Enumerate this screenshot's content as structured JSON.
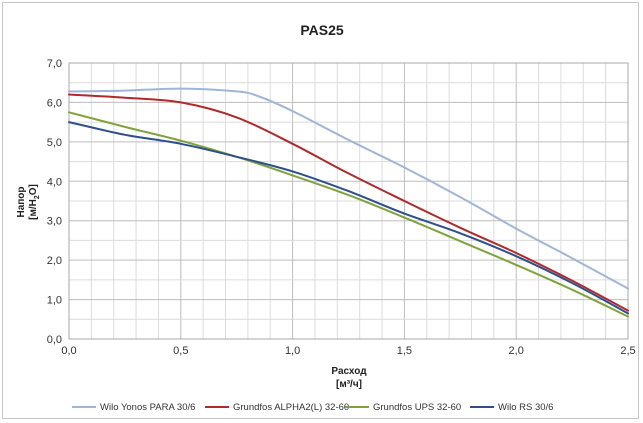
{
  "chart_data": {
    "type": "line",
    "title": "PAS25",
    "xlabel_line1": "Расход",
    "xlabel_line2": "[м³/ч]",
    "ylabel_line1": "Напор",
    "ylabel_line2_pre": "[м/H",
    "ylabel_line2_sub": "2",
    "ylabel_line2_post": "O]",
    "xlim": [
      0,
      2.5
    ],
    "ylim": [
      0,
      7
    ],
    "x_ticks": [
      "0,0",
      "0,5",
      "1,0",
      "1,5",
      "2,0",
      "2,5"
    ],
    "y_ticks": [
      "0,0",
      "1,0",
      "2,0",
      "3,0",
      "4,0",
      "5,0",
      "6,0",
      "7,0"
    ],
    "grid": true,
    "legend_position": "bottom",
    "series": [
      {
        "name": "Wilo Yonos PARA 30/6",
        "color": "#9fb6d6",
        "points": [
          [
            0,
            6.28
          ],
          [
            0.25,
            6.3
          ],
          [
            0.5,
            6.35
          ],
          [
            0.75,
            6.28
          ],
          [
            0.85,
            6.15
          ],
          [
            1.0,
            5.78
          ],
          [
            1.25,
            5.05
          ],
          [
            1.5,
            4.35
          ],
          [
            1.75,
            3.6
          ],
          [
            2.0,
            2.8
          ],
          [
            2.25,
            2.05
          ],
          [
            2.5,
            1.28
          ]
        ]
      },
      {
        "name": "Grundfos ALPHA2(L) 32-60",
        "color": "#b02a2a",
        "points": [
          [
            0,
            6.2
          ],
          [
            0.25,
            6.12
          ],
          [
            0.5,
            6.0
          ],
          [
            0.75,
            5.62
          ],
          [
            1.0,
            4.95
          ],
          [
            1.25,
            4.2
          ],
          [
            1.5,
            3.5
          ],
          [
            1.75,
            2.82
          ],
          [
            2.0,
            2.18
          ],
          [
            2.25,
            1.48
          ],
          [
            2.5,
            0.72
          ]
        ]
      },
      {
        "name": "Grundfos UPS 32-60",
        "color": "#7fa33a",
        "points": [
          [
            0,
            5.75
          ],
          [
            0.25,
            5.38
          ],
          [
            0.5,
            5.03
          ],
          [
            0.75,
            4.62
          ],
          [
            1.0,
            4.15
          ],
          [
            1.25,
            3.65
          ],
          [
            1.5,
            3.08
          ],
          [
            1.75,
            2.48
          ],
          [
            2.0,
            1.88
          ],
          [
            2.25,
            1.25
          ],
          [
            2.5,
            0.57
          ]
        ]
      },
      {
        "name": "Wilo RS 30/6",
        "color": "#2d4f8e",
        "points": [
          [
            0,
            5.5
          ],
          [
            0.25,
            5.18
          ],
          [
            0.5,
            4.95
          ],
          [
            0.75,
            4.62
          ],
          [
            1.0,
            4.25
          ],
          [
            1.25,
            3.75
          ],
          [
            1.5,
            3.18
          ],
          [
            1.75,
            2.68
          ],
          [
            2.0,
            2.1
          ],
          [
            2.25,
            1.42
          ],
          [
            2.5,
            0.65
          ]
        ]
      }
    ]
  }
}
